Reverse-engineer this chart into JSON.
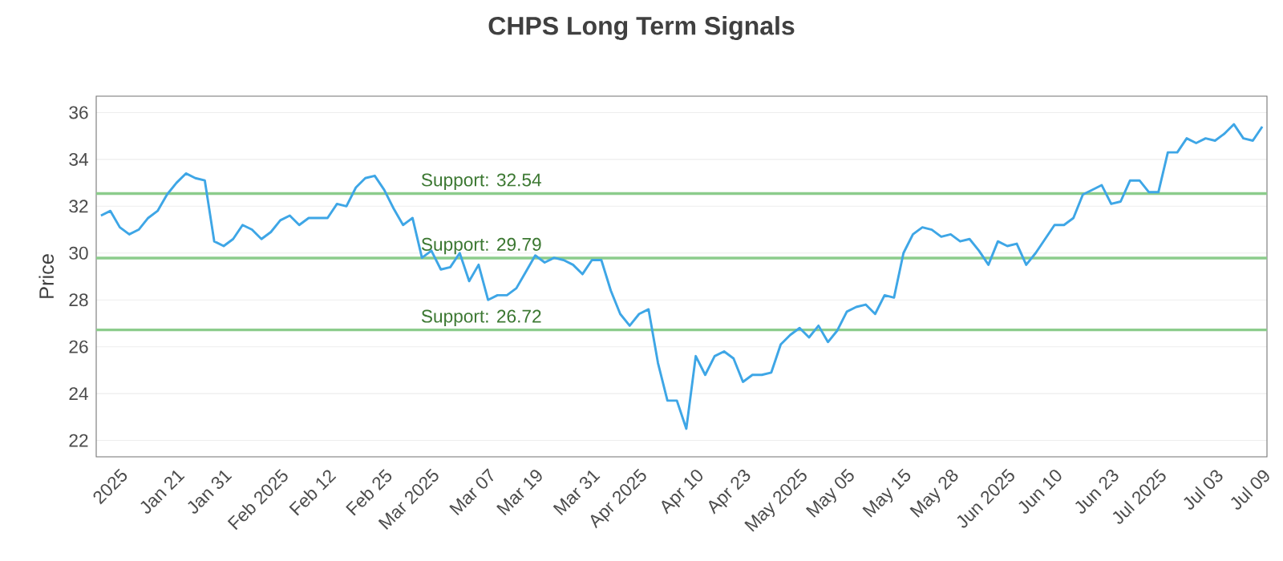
{
  "chart_data": {
    "type": "line",
    "title": "CHPS Long Term Signals",
    "ylabel": "Price",
    "categories": [
      null,
      null,
      "2025",
      null,
      null,
      null,
      null,
      null,
      "Jan 21",
      null,
      null,
      null,
      null,
      "Jan 31",
      null,
      null,
      null,
      null,
      null,
      "Feb 2025",
      null,
      null,
      null,
      null,
      "Feb 12",
      null,
      null,
      null,
      null,
      null,
      "Feb 25",
      null,
      null,
      null,
      null,
      "Mar 2025",
      null,
      null,
      null,
      null,
      null,
      "Mar 07",
      null,
      null,
      null,
      null,
      "Mar 19",
      null,
      null,
      null,
      null,
      null,
      "Mar 31",
      null,
      null,
      null,
      null,
      "Apr 2025",
      null,
      null,
      null,
      null,
      null,
      "Apr 10",
      null,
      null,
      null,
      null,
      "Apr 23",
      null,
      null,
      null,
      null,
      null,
      "May 2025",
      null,
      null,
      null,
      null,
      "May 05",
      null,
      null,
      null,
      null,
      null,
      "May 15",
      null,
      null,
      null,
      null,
      "May 28",
      null,
      null,
      null,
      null,
      null,
      "Jun 2025",
      null,
      null,
      null,
      null,
      "Jun 10",
      null,
      null,
      null,
      null,
      null,
      "Jun 23",
      null,
      null,
      null,
      null,
      "Jul 2025",
      null,
      null,
      null,
      null,
      null,
      "Jul 03",
      null,
      null,
      null,
      null,
      "Jul 09"
    ],
    "series": [
      {
        "color": "#3ea6e6",
        "values": [
          31.6,
          31.8,
          31.1,
          30.8,
          31.0,
          31.5,
          31.8,
          32.5,
          33.0,
          33.4,
          33.2,
          33.1,
          30.5,
          30.3,
          30.6,
          31.2,
          31.0,
          30.6,
          30.9,
          31.4,
          31.6,
          31.2,
          31.5,
          31.5,
          31.5,
          32.1,
          32.0,
          32.8,
          33.2,
          33.3,
          32.7,
          31.9,
          31.2,
          31.5,
          29.8,
          30.1,
          29.3,
          29.4,
          30.0,
          28.8,
          29.5,
          28.0,
          28.2,
          28.2,
          28.5,
          29.2,
          29.9,
          29.6,
          29.8,
          29.7,
          29.5,
          29.1,
          29.7,
          29.7,
          28.4,
          27.4,
          26.9,
          27.4,
          27.6,
          25.3,
          23.7,
          23.7,
          22.5,
          25.6,
          24.8,
          25.6,
          25.8,
          25.5,
          24.5,
          24.8,
          24.8,
          24.9,
          26.1,
          26.5,
          26.8,
          26.4,
          26.9,
          26.2,
          26.7,
          27.5,
          27.7,
          27.8,
          27.4,
          28.2,
          28.1,
          30.0,
          30.8,
          31.1,
          31.0,
          30.7,
          30.8,
          30.5,
          30.6,
          30.1,
          29.5,
          30.5,
          30.3,
          30.4,
          29.5,
          30.0,
          30.6,
          31.2,
          31.2,
          31.5,
          32.5,
          32.7,
          32.9,
          32.1,
          32.2,
          33.1,
          33.1,
          32.6,
          32.6,
          34.3,
          34.3,
          34.9,
          34.7,
          34.9,
          34.8,
          35.1,
          35.5,
          34.9,
          34.8,
          35.4
        ]
      }
    ],
    "ylim": [
      21.3,
      36.7
    ],
    "yticks": [
      22,
      24,
      26,
      28,
      30,
      32,
      34,
      36
    ],
    "grid": "y",
    "marker": "none",
    "line_style": "solid",
    "ref_lines": [
      {
        "axis": "y",
        "value": 32.54,
        "label": "Support: 32.54",
        "color": "#8ccc8c"
      },
      {
        "axis": "y",
        "value": 29.79,
        "label": "Support: 29.79",
        "color": "#8ccc8c"
      },
      {
        "axis": "y",
        "value": 26.72,
        "label": "Support: 26.72",
        "color": "#8ccc8c"
      }
    ]
  }
}
